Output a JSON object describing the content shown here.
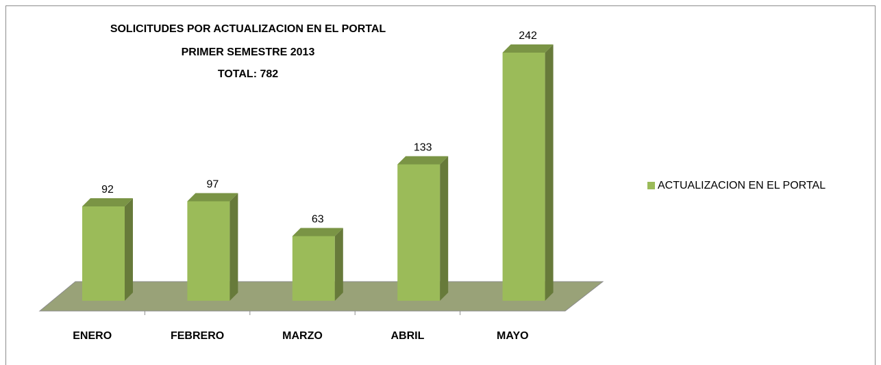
{
  "chart_data": {
    "type": "bar3d",
    "title": "SOLICITUDES POR ACTUALIZACION EN EL PORTAL",
    "subtitle": [
      "PRIMER SEMESTRE 2013",
      "TOTAL: 782"
    ],
    "categories": [
      "ENERO",
      "FEBRERO",
      "MARZO",
      "ABRIL",
      "MAYO"
    ],
    "series": [
      {
        "name": "ACTUALIZACION EN EL PORTAL",
        "color": "#9bbb59",
        "values": [
          92,
          97,
          63,
          133,
          242
        ]
      }
    ],
    "legend": "right"
  }
}
